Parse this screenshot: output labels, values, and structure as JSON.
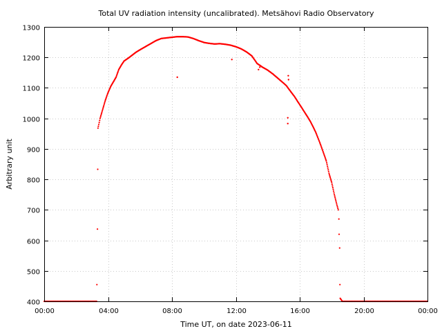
{
  "chart_data": {
    "type": "scatter",
    "title": "Total UV radiation intensity (uncalibrated). Metsähovi Radio Observatory",
    "xlabel": "Time UT, on date 2023-06-11",
    "ylabel": "Arbitrary unit",
    "xlim": [
      "00:00",
      "24:00"
    ],
    "ylim": [
      400,
      1300
    ],
    "x_tick_labels": [
      "00:00",
      "04:00",
      "08:00",
      "12:00",
      "16:00",
      "20:00",
      "00:00"
    ],
    "y_ticks": [
      400,
      500,
      600,
      700,
      800,
      900,
      1000,
      1100,
      1200,
      1300
    ],
    "grid": true,
    "marker_color": "#ff0000",
    "series": [
      {
        "x": [
          "00:00",
          "03:17",
          "03:18",
          "03:20",
          "03:21",
          "03:22",
          "03:25",
          "03:30",
          "03:40",
          "03:50",
          "04:00",
          "04:10",
          "04:20",
          "04:30",
          "04:40",
          "04:50",
          "05:00",
          "05:15",
          "05:30",
          "05:45",
          "06:00",
          "06:20",
          "06:40",
          "07:00",
          "07:20",
          "07:40",
          "08:00",
          "08:20",
          "08:40",
          "09:00",
          "09:20",
          "09:40",
          "10:00",
          "10:20",
          "10:40",
          "11:00",
          "11:20",
          "11:40",
          "12:00",
          "12:20",
          "12:40",
          "13:00",
          "13:20",
          "13:40",
          "14:00",
          "14:20",
          "14:40",
          "15:00",
          "15:10",
          "15:20",
          "15:40",
          "16:00",
          "16:20",
          "16:40",
          "17:00",
          "17:20",
          "17:40",
          "17:50",
          "18:00",
          "18:10",
          "18:20",
          "18:25",
          "18:27",
          "18:28",
          "18:30",
          "18:31",
          "18:32",
          "18:40",
          "19:00",
          "20:00",
          "22:00",
          "24:00"
        ],
        "y": [
          400,
          400,
          455,
          637,
          833,
          968,
          980,
          1000,
          1030,
          1060,
          1085,
          1105,
          1120,
          1135,
          1160,
          1175,
          1188,
          1197,
          1207,
          1217,
          1225,
          1235,
          1245,
          1255,
          1262,
          1264,
          1266,
          1268,
          1268,
          1267,
          1262,
          1255,
          1249,
          1246,
          1244,
          1245,
          1243,
          1240,
          1235,
          1228,
          1218,
          1205,
          1180,
          1168,
          1158,
          1145,
          1130,
          1115,
          1107,
          1095,
          1072,
          1045,
          1018,
          990,
          955,
          910,
          860,
          820,
          790,
          750,
          715,
          700,
          670,
          620,
          575,
          455,
          410,
          400,
          400,
          400,
          400,
          400
        ]
      }
    ],
    "outliers": {
      "x": [
        "08:20",
        "11:45",
        "13:25",
        "13:30",
        "15:15",
        "15:15",
        "15:17",
        "15:18"
      ],
      "y": [
        1135,
        1193,
        1160,
        1168,
        983,
        1002,
        1140,
        1127
      ]
    }
  }
}
